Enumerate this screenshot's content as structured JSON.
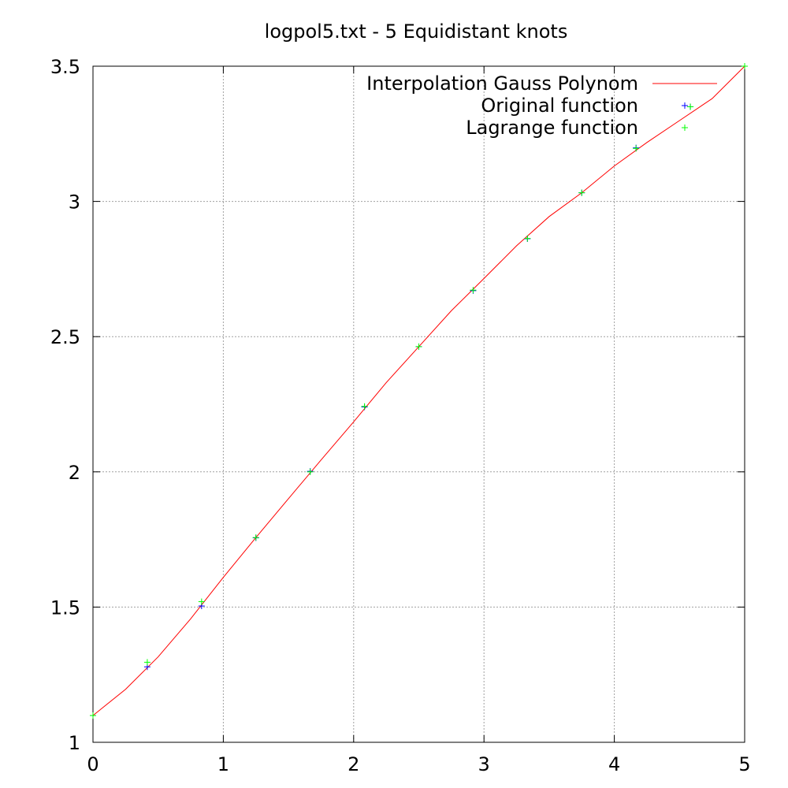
{
  "chart_data": {
    "type": "line",
    "title": "logpol5.txt - 5 Equidistant knots",
    "xlabel": "",
    "ylabel": "",
    "xlim": [
      0,
      5
    ],
    "ylim": [
      1,
      3.5
    ],
    "x_ticks": [
      "0",
      "1",
      "2",
      "3",
      "4",
      "5"
    ],
    "y_ticks": [
      "1",
      "1.5",
      "2",
      "2.5",
      "3",
      "3.5"
    ],
    "grid": true,
    "legend_position": "top-right",
    "series": [
      {
        "name": "Interpolation Gauss Polynom",
        "style": "line",
        "color": "#ff0000",
        "x": [
          0,
          0.25,
          0.5,
          0.75,
          1.0,
          1.25,
          1.5,
          1.75,
          2.0,
          2.25,
          2.5,
          2.75,
          3.0,
          3.25,
          3.5,
          3.75,
          4.0,
          4.25,
          4.5,
          4.75,
          5.0
        ],
        "y": [
          1.099,
          1.196,
          1.316,
          1.457,
          1.61,
          1.757,
          1.901,
          2.044,
          2.185,
          2.33,
          2.463,
          2.596,
          2.715,
          2.836,
          2.944,
          3.032,
          3.131,
          3.218,
          3.299,
          3.38,
          3.5
        ]
      },
      {
        "name": "Original function",
        "style": "points",
        "color": "#0000ff",
        "x": [
          0,
          0.4167,
          0.8333,
          1.25,
          1.6667,
          2.0833,
          2.5,
          2.9167,
          3.3333,
          3.75,
          4.1667,
          4.5833,
          5.0
        ],
        "y": [
          1.099,
          1.279,
          1.504,
          1.756,
          2.002,
          2.24,
          2.463,
          2.67,
          2.862,
          3.032,
          3.198,
          3.35,
          3.5
        ]
      },
      {
        "name": "Lagrange function",
        "style": "points",
        "color": "#00ff00",
        "x": [
          0,
          0.4167,
          0.8333,
          1.25,
          1.6667,
          2.0833,
          2.5,
          2.9167,
          3.3333,
          3.75,
          4.1667,
          4.5833,
          5.0
        ],
        "y": [
          1.099,
          1.296,
          1.52,
          1.757,
          2.0,
          2.242,
          2.463,
          2.672,
          2.863,
          3.032,
          3.196,
          3.35,
          3.5
        ]
      }
    ]
  }
}
